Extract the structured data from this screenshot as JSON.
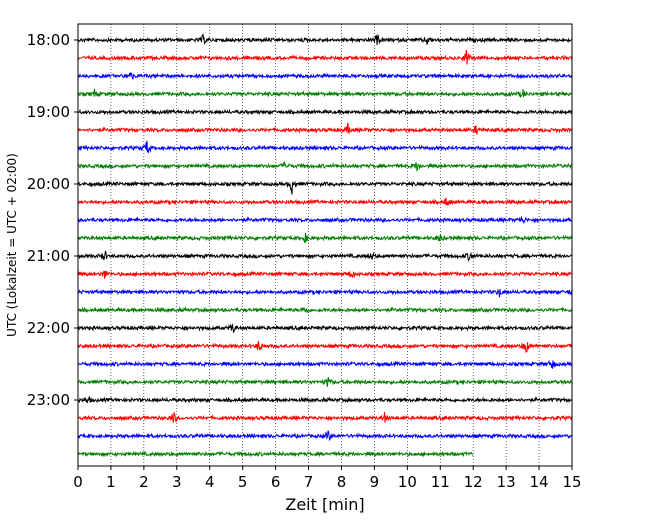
{
  "chart_data": {
    "type": "line",
    "title": "",
    "xlabel": "Zeit  [min]",
    "ylabel": "UTC (Lokalzeit = UTC + 02:00)",
    "xlim": [
      0,
      15
    ],
    "x_ticks": [
      "0",
      "1",
      "2",
      "3",
      "4",
      "5",
      "6",
      "7",
      "8",
      "9",
      "10",
      "11",
      "12",
      "13",
      "14",
      "15"
    ],
    "y_ticks": [
      "18:00",
      "19:00",
      "20:00",
      "21:00",
      "22:00",
      "23:00"
    ],
    "grid": "vertical dotted lines at each minute",
    "row_interval_min": 15,
    "trace_colors": [
      "#000000",
      "#ff0000",
      "#0000ff",
      "#008000"
    ],
    "last_trace_end_min": 12,
    "traces": [
      {
        "start": "18:00",
        "color": "#000000",
        "end_min": 15,
        "events": [
          {
            "t": 3.8,
            "amp": 0.25
          },
          {
            "t": 9.1,
            "amp": 0.3
          },
          {
            "t": 10.6,
            "amp": 0.25
          }
        ]
      },
      {
        "start": "18:15",
        "color": "#ff0000",
        "end_min": 15,
        "events": [
          {
            "t": 11.8,
            "amp": 0.5
          }
        ]
      },
      {
        "start": "18:30",
        "color": "#0000ff",
        "end_min": 15,
        "events": [
          {
            "t": 1.6,
            "amp": 0.25
          }
        ]
      },
      {
        "start": "18:45",
        "color": "#008000",
        "end_min": 15,
        "events": [
          {
            "t": 0.5,
            "amp": 0.2
          },
          {
            "t": 13.5,
            "amp": 0.25
          }
        ]
      },
      {
        "start": "19:00",
        "color": "#000000",
        "end_min": 15,
        "events": []
      },
      {
        "start": "19:15",
        "color": "#ff0000",
        "end_min": 15,
        "events": [
          {
            "t": 8.2,
            "amp": 0.3
          },
          {
            "t": 12.1,
            "amp": 0.25
          }
        ]
      },
      {
        "start": "19:30",
        "color": "#0000ff",
        "end_min": 15,
        "events": [
          {
            "t": 2.1,
            "amp": 0.45
          }
        ]
      },
      {
        "start": "19:45",
        "color": "#008000",
        "end_min": 15,
        "events": [
          {
            "t": 6.3,
            "amp": 0.25
          },
          {
            "t": 10.3,
            "amp": 0.3
          }
        ]
      },
      {
        "start": "20:00",
        "color": "#000000",
        "end_min": 15,
        "events": [
          {
            "t": 6.5,
            "amp": 0.55
          }
        ]
      },
      {
        "start": "20:15",
        "color": "#ff0000",
        "end_min": 15,
        "events": [
          {
            "t": 11.2,
            "amp": 0.3
          }
        ]
      },
      {
        "start": "20:30",
        "color": "#0000ff",
        "end_min": 15,
        "events": [
          {
            "t": 13.5,
            "amp": 0.2
          }
        ]
      },
      {
        "start": "20:45",
        "color": "#008000",
        "end_min": 15,
        "events": [
          {
            "t": 6.9,
            "amp": 0.25
          },
          {
            "t": 11.0,
            "amp": 0.25
          }
        ]
      },
      {
        "start": "21:00",
        "color": "#000000",
        "end_min": 15,
        "events": [
          {
            "t": 0.8,
            "amp": 0.3
          },
          {
            "t": 8.9,
            "amp": 0.25
          },
          {
            "t": 11.9,
            "amp": 0.3
          }
        ]
      },
      {
        "start": "21:15",
        "color": "#ff0000",
        "end_min": 15,
        "events": [
          {
            "t": 0.8,
            "amp": 0.25
          },
          {
            "t": 8.3,
            "amp": 0.25
          }
        ]
      },
      {
        "start": "21:30",
        "color": "#0000ff",
        "end_min": 15,
        "events": [
          {
            "t": 12.8,
            "amp": 0.25
          },
          {
            "t": 15.0,
            "amp": 0.25
          }
        ]
      },
      {
        "start": "21:45",
        "color": "#008000",
        "end_min": 15,
        "events": [
          {
            "t": 6.9,
            "amp": 0.3
          }
        ]
      },
      {
        "start": "22:00",
        "color": "#000000",
        "end_min": 15,
        "events": [
          {
            "t": 4.7,
            "amp": 0.3
          }
        ]
      },
      {
        "start": "22:15",
        "color": "#ff0000",
        "end_min": 15,
        "events": [
          {
            "t": 5.5,
            "amp": 0.35
          },
          {
            "t": 13.6,
            "amp": 0.45
          }
        ]
      },
      {
        "start": "22:30",
        "color": "#0000ff",
        "end_min": 15,
        "events": [
          {
            "t": 14.4,
            "amp": 0.3
          }
        ]
      },
      {
        "start": "22:45",
        "color": "#008000",
        "end_min": 15,
        "events": [
          {
            "t": 7.6,
            "amp": 0.3
          }
        ]
      },
      {
        "start": "23:00",
        "color": "#000000",
        "end_min": 15,
        "events": [
          {
            "t": 0.3,
            "amp": 0.25
          }
        ]
      },
      {
        "start": "23:15",
        "color": "#ff0000",
        "end_min": 15,
        "events": [
          {
            "t": 2.9,
            "amp": 0.35
          },
          {
            "t": 9.3,
            "amp": 0.3
          }
        ]
      },
      {
        "start": "23:30",
        "color": "#0000ff",
        "end_min": 15,
        "events": [
          {
            "t": 7.6,
            "amp": 0.3
          }
        ]
      },
      {
        "start": "23:45",
        "color": "#008000",
        "end_min": 12,
        "events": []
      }
    ]
  }
}
